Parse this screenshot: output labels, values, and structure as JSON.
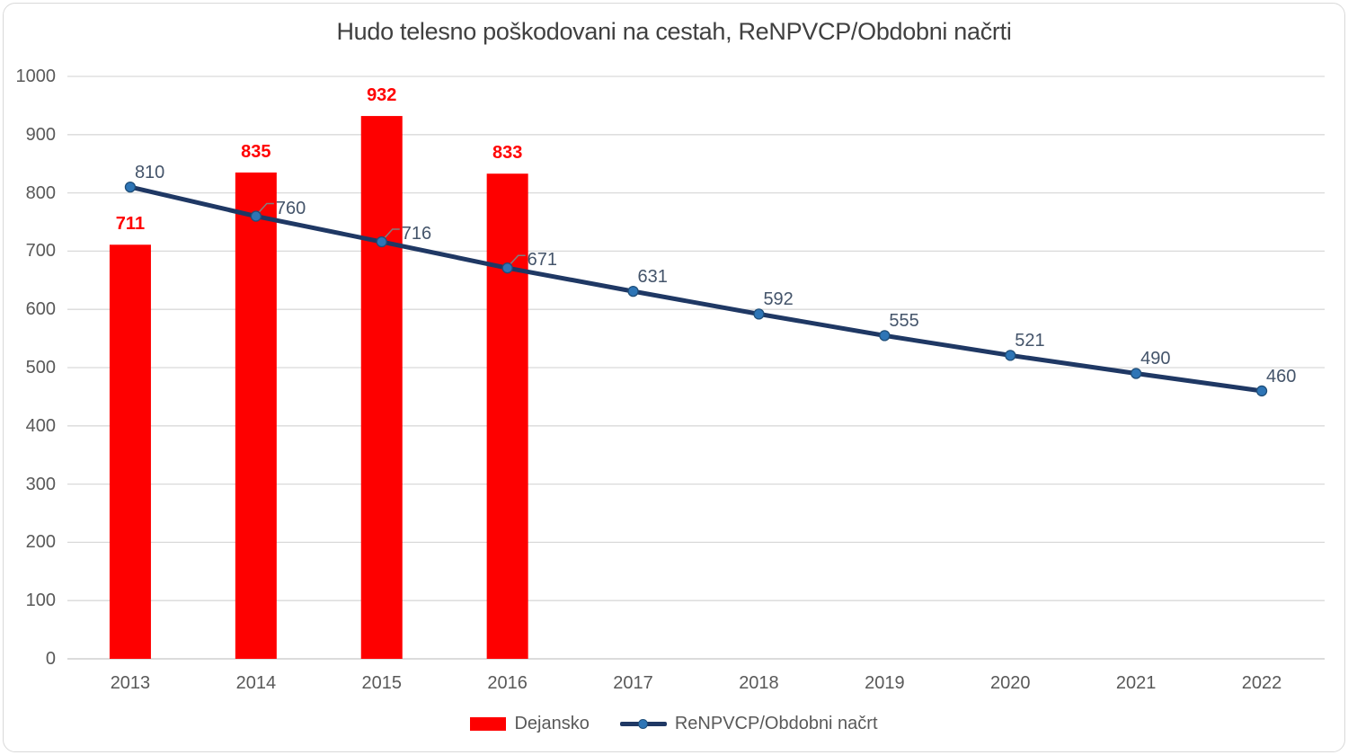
{
  "title": "Hudo telesno poškodovani na cestah, ReNPVCP/Obdobni načrti",
  "legend": {
    "items": [
      {
        "label": "Dejansko",
        "series_type": "bar"
      },
      {
        "label": "ReNPVCP/Obdobni načrt",
        "series_type": "line"
      }
    ]
  },
  "colors": {
    "bar": "#fe0000",
    "bar_label": "#ff0000",
    "line": "#1f3864",
    "marker_fill": "#2e75b6",
    "marker_edge": "#1f4e79",
    "line_label": "#44546a",
    "axis_text": "#595959",
    "gridline": "#d9d9d9",
    "axis_line": "#c6c6c6",
    "title_text": "#404040",
    "legend_text": "#595959",
    "leader_line": "#808080",
    "chart_border": "#d9d9d9",
    "background": "#ffffff"
  },
  "chart_data": {
    "type": "bar+line",
    "title": "Hudo telesno poškodovani na cestah, ReNPVCP/Obdobni načrti",
    "categories": [
      "2013",
      "2014",
      "2015",
      "2016",
      "2017",
      "2018",
      "2019",
      "2020",
      "2021",
      "2022"
    ],
    "series": [
      {
        "name": "Dejansko",
        "type": "bar",
        "values": [
          711,
          835,
          932,
          833,
          null,
          null,
          null,
          null,
          null,
          null
        ]
      },
      {
        "name": "ReNPVCP/Obdobni načrt",
        "type": "line",
        "values": [
          810,
          760,
          716,
          671,
          631,
          592,
          555,
          521,
          490,
          460
        ]
      }
    ],
    "xlabel": "",
    "ylabel": "",
    "ylim": [
      0,
      1000
    ],
    "ytick_step": 100,
    "grid": true,
    "data_labels": true,
    "legend_position": "bottom",
    "callout_label_indices": [
      1,
      2,
      3
    ]
  }
}
